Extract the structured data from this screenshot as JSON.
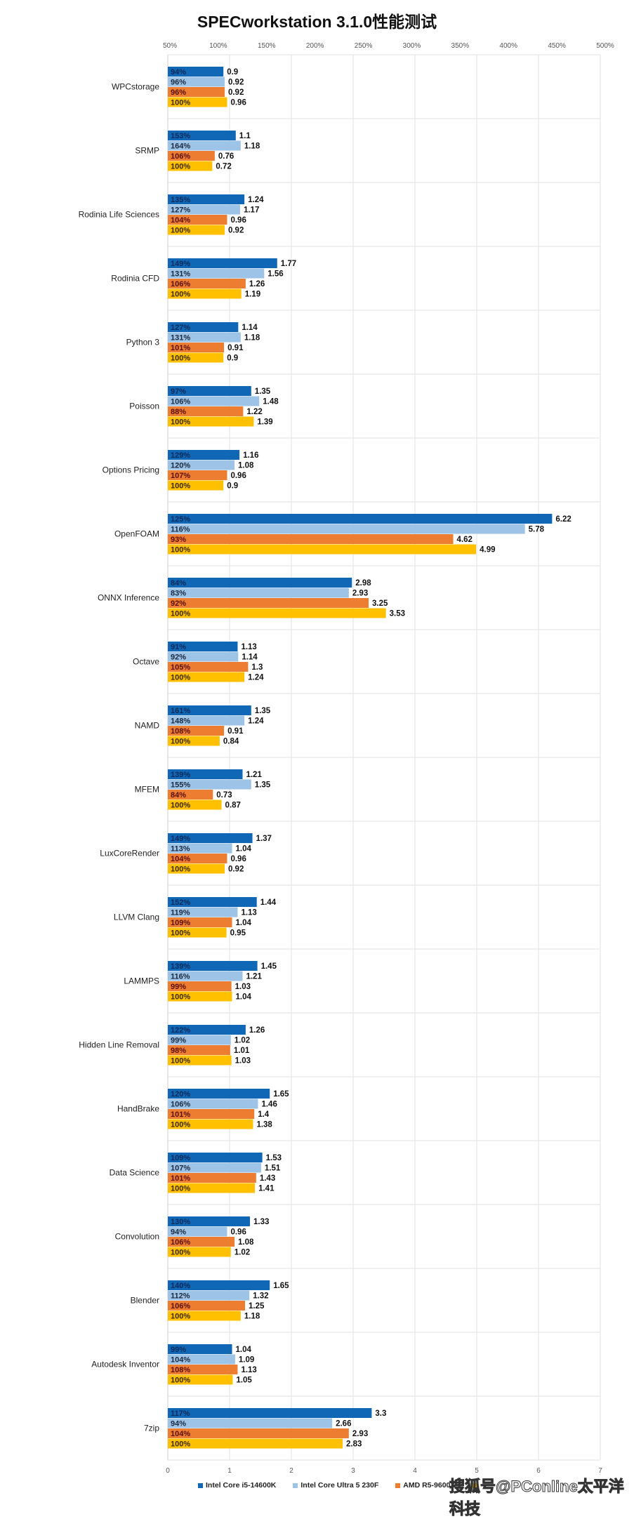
{
  "chart_data": {
    "type": "bar",
    "orientation": "horizontal",
    "title": "SPECworkstation 3.1.0性能测试",
    "xlim": [
      0,
      7
    ],
    "x_ticks": [
      "0",
      "1",
      "2",
      "3",
      "4",
      "5",
      "6",
      "7"
    ],
    "top_axis_ticks": [
      "50%",
      "100%",
      "150%",
      "200%",
      "250%",
      "300%",
      "350%",
      "400%",
      "450%",
      "500%"
    ],
    "grid": true,
    "legend": "bottom",
    "categories": [
      "WPCstorage",
      "SRMP",
      "Rodinia Life Sciences",
      "Rodinia CFD",
      "Python 3",
      "Poisson",
      "Options Pricing",
      "OpenFOAM",
      "ONNX Inference",
      "Octave",
      "NAMD",
      "MFEM",
      "LuxCoreRender",
      "LLVM Clang",
      "LAMMPS",
      "Hidden Line Removal",
      "HandBrake",
      "Data Science",
      "Convolution",
      "Blender",
      "Autodesk Inventor",
      "7zip"
    ],
    "series": [
      {
        "name": "Intel Core i5-14600K",
        "color": "#0f67b5",
        "label_color": "#0b2a5a",
        "values": [
          0.9,
          1.1,
          1.24,
          1.77,
          1.14,
          1.35,
          1.16,
          6.22,
          2.98,
          1.13,
          1.35,
          1.21,
          1.37,
          1.44,
          1.45,
          1.26,
          1.65,
          1.53,
          1.33,
          1.65,
          1.04,
          3.3
        ],
        "percent": [
          "94%",
          "153%",
          "135%",
          "149%",
          "127%",
          "97%",
          "129%",
          "125%",
          "84%",
          "91%",
          "161%",
          "139%",
          "149%",
          "152%",
          "139%",
          "122%",
          "120%",
          "109%",
          "130%",
          "140%",
          "99%",
          "117%"
        ]
      },
      {
        "name": "Intel Core Ultra 5 230F",
        "color": "#9dc3e6",
        "label_color": "#1b2a40",
        "values": [
          0.92,
          1.18,
          1.17,
          1.56,
          1.18,
          1.48,
          1.08,
          5.78,
          2.93,
          1.14,
          1.24,
          1.35,
          1.04,
          1.13,
          1.21,
          1.02,
          1.46,
          1.51,
          0.96,
          1.32,
          1.09,
          2.66
        ],
        "percent": [
          "96%",
          "164%",
          "127%",
          "131%",
          "131%",
          "106%",
          "120%",
          "116%",
          "83%",
          "92%",
          "148%",
          "155%",
          "113%",
          "119%",
          "116%",
          "99%",
          "106%",
          "107%",
          "94%",
          "112%",
          "104%",
          "94%"
        ]
      },
      {
        "name": "AMD R5-9600X",
        "color": "#ed7d31",
        "label_color": "#5a0e0a",
        "values": [
          0.92,
          0.76,
          0.96,
          1.26,
          0.91,
          1.22,
          0.96,
          4.62,
          3.25,
          1.3,
          0.91,
          0.73,
          0.96,
          1.04,
          1.03,
          1.01,
          1.4,
          1.43,
          1.08,
          1.25,
          1.13,
          2.93
        ],
        "percent": [
          "96%",
          "106%",
          "104%",
          "106%",
          "101%",
          "88%",
          "107%",
          "93%",
          "92%",
          "105%",
          "108%",
          "84%",
          "104%",
          "109%",
          "99%",
          "98%",
          "101%",
          "101%",
          "106%",
          "106%",
          "108%",
          "104%"
        ]
      },
      {
        "name": "",
        "color": "#ffc000",
        "label_color": "#3a2a00",
        "values": [
          0.96,
          0.72,
          0.92,
          1.19,
          0.9,
          1.39,
          0.9,
          4.99,
          3.53,
          1.24,
          0.84,
          0.87,
          0.92,
          0.95,
          1.04,
          1.03,
          1.38,
          1.41,
          1.02,
          1.18,
          1.05,
          2.83
        ],
        "percent": [
          "100%",
          "100%",
          "100%",
          "100%",
          "100%",
          "100%",
          "100%",
          "100%",
          "100%",
          "100%",
          "100%",
          "100%",
          "100%",
          "100%",
          "100%",
          "100%",
          "100%",
          "100%",
          "100%",
          "100%",
          "100%",
          "100%"
        ]
      }
    ]
  },
  "watermark": "搜狐号@PConline太平洋科技"
}
